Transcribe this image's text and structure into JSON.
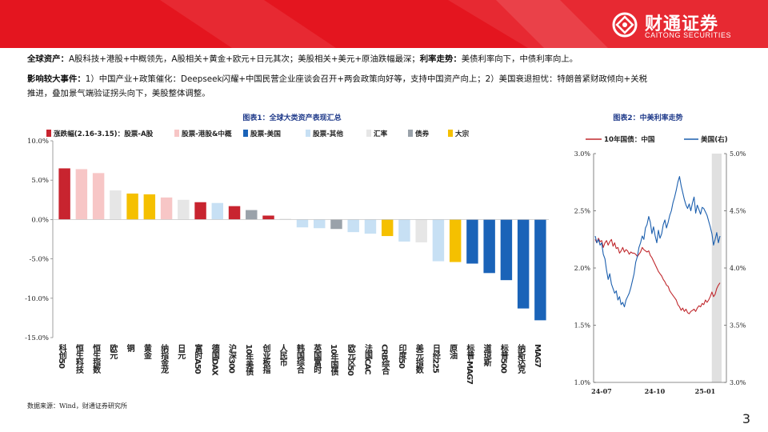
{
  "brand": {
    "name": "财通证券",
    "sub": "CAITONG SECURITIES",
    "color": "#e4151f"
  },
  "body": {
    "line1_head": "全球资产：",
    "line1_text": "A股科技+港股+中概领先，A股相关+黄金+欧元+日元其次；美股相关+美元+原油跌幅最深；",
    "line1_head2": "利率走势：",
    "line1_text2": "美债利率向下，中债利率向上。",
    "line2_head": "影响较大事件：",
    "line2_text": "1）中国产业+政策催化：Deepseek闪耀+中国民营企业座谈会召开+两会政策向好等，支持中国资产向上；2）美国衰退担忧：特朗普紧财政倾向+关税",
    "line3_text": "推进，叠加景气端验证拐头向下，美股整体调整。"
  },
  "chart_data": [
    {
      "type": "bar",
      "title": "图表1：全球大类资产表现汇总",
      "legend": [
        {
          "label": "涨跌幅(2.16-3.15)：股票-A股",
          "color": "#c8242f"
        },
        {
          "label": "股票-港股&中概",
          "color": "#f7c6c6"
        },
        {
          "label": "股票-美国",
          "color": "#1a63b8"
        },
        {
          "label": "股票-其他",
          "color": "#c7e0f4"
        },
        {
          "label": "汇率",
          "color": "#e6e6e6"
        },
        {
          "label": "债券",
          "color": "#9aa2aa"
        },
        {
          "label": "大宗",
          "color": "#f5c000"
        }
      ],
      "categories": [
        "科创50",
        "恒生科技",
        "恒生指数",
        "欧元",
        "铜",
        "黄金",
        "纳指金龙",
        "日元",
        "富时A50",
        "德国DAX",
        "沪深300",
        "10年美债",
        "创业板指",
        "人民币",
        "韩国综合",
        "英国富时",
        "10年国债",
        "欧元区50",
        "法国CAC",
        "CRB综合",
        "印度50",
        "美元指数",
        "日经225",
        "原油",
        "标普-MAG7",
        "道琼斯",
        "标普500",
        "纳斯达克",
        "MAG7"
      ],
      "groups": [
        "A股",
        "港股&中概",
        "港股&中概",
        "汇率",
        "大宗",
        "大宗",
        "港股&中概",
        "汇率",
        "A股",
        "其他",
        "A股",
        "债券",
        "A股",
        "汇率",
        "其他",
        "其他",
        "债券",
        "其他",
        "其他",
        "大宗",
        "其他",
        "汇率",
        "其他",
        "大宗",
        "美国",
        "美国",
        "美国",
        "美国",
        "美国"
      ],
      "values": [
        6.5,
        6.4,
        5.9,
        3.7,
        3.3,
        3.2,
        2.8,
        2.5,
        2.2,
        2.1,
        1.7,
        1.2,
        0.5,
        0.1,
        -1.0,
        -1.1,
        -1.2,
        -1.6,
        -1.8,
        -2.1,
        -2.8,
        -2.9,
        -5.3,
        -5.4,
        -5.6,
        -6.8,
        -7.7,
        -11.3,
        -12.8
      ],
      "yticks": [
        "10.0%",
        "5.0%",
        "0.0%",
        "-5.0%",
        "-10.0%",
        "-15.0%"
      ],
      "ylim": [
        -15,
        10
      ]
    },
    {
      "type": "line",
      "title": "图表2：中美利率走势",
      "series": [
        {
          "name": "10年国债：中国",
          "color": "#c0282d",
          "axis": "left",
          "values": [
            2.25,
            2.22,
            2.26,
            2.23,
            2.24,
            2.18,
            2.22,
            2.24,
            2.2,
            2.23,
            2.25,
            2.19,
            2.22,
            2.17,
            2.18,
            2.13,
            2.15,
            2.18,
            2.14,
            2.16,
            2.15,
            2.12,
            2.14,
            2.13,
            2.13,
            2.12,
            2.1,
            2.12,
            2.14,
            2.18,
            2.16,
            2.15,
            2.14,
            2.15,
            2.11,
            2.09,
            2.06,
            2.03,
            2.0,
            1.97,
            1.95,
            1.93,
            1.9,
            1.88,
            1.85,
            1.84,
            1.8,
            1.78,
            1.76,
            1.74,
            1.72,
            1.68,
            1.66,
            1.63,
            1.65,
            1.62,
            1.64,
            1.61,
            1.6,
            1.62,
            1.63,
            1.64,
            1.62,
            1.65,
            1.67,
            1.66,
            1.69,
            1.68,
            1.72,
            1.7,
            1.72,
            1.75,
            1.79,
            1.75,
            1.77,
            1.82,
            1.85,
            1.87
          ]
        },
        {
          "name": "美国(右)",
          "color": "#1c5fae",
          "axis": "right",
          "values": [
            4.28,
            4.22,
            4.25,
            4.2,
            4.22,
            4.12,
            4.08,
            3.98,
            3.9,
            3.95,
            3.86,
            3.82,
            3.78,
            3.8,
            3.72,
            3.75,
            3.68,
            3.7,
            3.66,
            3.72,
            3.75,
            3.78,
            3.83,
            3.89,
            3.95,
            4.05,
            4.1,
            4.18,
            4.22,
            4.28,
            4.25,
            4.35,
            4.38,
            4.45,
            4.4,
            4.3,
            4.36,
            4.28,
            4.22,
            4.33,
            4.26,
            4.3,
            4.38,
            4.42,
            4.35,
            4.4,
            4.46,
            4.5,
            4.57,
            4.62,
            4.68,
            4.75,
            4.8,
            4.72,
            4.66,
            4.6,
            4.55,
            4.52,
            4.56,
            4.5,
            4.57,
            4.62,
            4.48,
            4.55,
            4.51,
            4.47,
            4.53,
            4.52,
            4.49,
            4.46,
            4.41,
            4.36,
            4.3,
            4.2,
            4.25,
            4.31,
            4.22,
            4.28
          ]
        }
      ],
      "x_ticks": [
        "24-07",
        "24-10",
        "25-01"
      ],
      "y_left_ticks": [
        "3.0%",
        "2.5%",
        "2.0%",
        "1.5%",
        "1.0%"
      ],
      "y_right_ticks": [
        "5.0%",
        "4.5%",
        "4.0%",
        "3.5%",
        "3.0%"
      ],
      "ylim_left": [
        1.0,
        3.0
      ],
      "ylim_right": [
        3.0,
        5.0
      ],
      "shade_color": "#e0e0e0"
    }
  ],
  "footer": {
    "source": "数据来源：Wind，财通证券研究所",
    "page": "3"
  }
}
